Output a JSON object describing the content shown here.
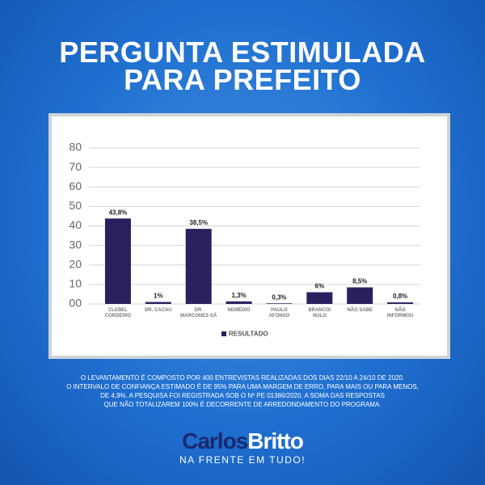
{
  "title": [
    "PERGUNTA ESTIMULADA",
    "PARA PREFEITO"
  ],
  "chart_data": {
    "type": "bar",
    "categories": [
      "CLEBEL CORDEIRO",
      "DR. CACAU",
      "DR. MARCONES SÁ",
      "NEMÉDIO",
      "PAULO AFONSO",
      "BRANCO/ NULO",
      "NÃO SABE",
      "NÃO INFORMOU"
    ],
    "series": [
      {
        "name": "RESULTADO",
        "color": "#2b1f5e",
        "values": [
          43.8,
          1,
          38.5,
          1.3,
          0.3,
          6,
          8.5,
          0.8
        ],
        "value_labels": [
          "43,8%",
          "1%",
          "38,5%",
          "1,3%",
          "0,3%",
          "6%",
          "8,5%",
          "0,8%"
        ]
      }
    ],
    "ylim": [
      0,
      80
    ],
    "yticks": [
      {
        "value": 0,
        "label": "00"
      },
      10,
      20,
      30,
      40,
      50,
      60,
      70,
      80
    ],
    "grid": true,
    "legend": "bottom"
  },
  "footnote": [
    "O LEVANTAMENTO É COMPOSTO POR 400 ENTREVISTAS REALIZADAS  DOS DIAS 22/10 A 24/10 DE 2020.",
    "O INTERVALO DE CONFIANÇA ESTIMADO É DE 95% PARA UMA MARGEM DE ERRO, PARA MAIS OU PARA MENOS,",
    "DE 4,9%. A PESQUISA FOI REGISTRADA SOB O Nº PE 01386/2020. A SOMA DAS RESPOSTAS",
    "QUE NÃO TOTALIZAREM 100% É DECORRENTE DE ARREDONDAMENTO DO PROGRAMA."
  ],
  "logo": {
    "first": "Carlos",
    "second": "Britto",
    "tagline": "NA FRENTE EM TUDO!"
  }
}
